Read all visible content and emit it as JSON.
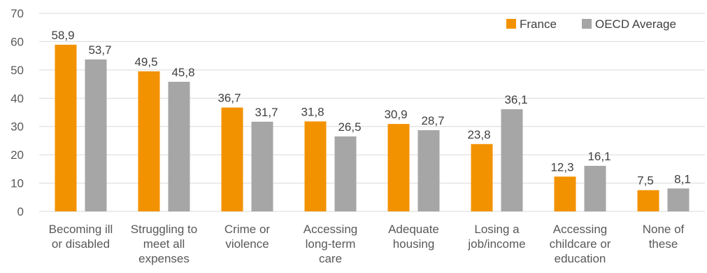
{
  "chart_data": {
    "type": "bar",
    "title": "",
    "xlabel": "",
    "ylabel": "",
    "ylim": [
      0,
      70
    ],
    "yticks": [
      0,
      10,
      20,
      30,
      40,
      50,
      60,
      70
    ],
    "grid": true,
    "legend_position": "top-right",
    "categories": [
      [
        "Becoming ill",
        "or disabled"
      ],
      [
        "Struggling to",
        "meet all",
        "expenses"
      ],
      [
        "Crime or",
        "violence"
      ],
      [
        "Accessing",
        "long-term",
        "care"
      ],
      [
        "Adequate",
        "housing"
      ],
      [
        "Losing a",
        "job/income"
      ],
      [
        "Accessing",
        "childcare or",
        "education"
      ],
      [
        "None of",
        "these"
      ]
    ],
    "series": [
      {
        "name": "France",
        "color": "#f39200",
        "values": [
          58.9,
          49.5,
          36.7,
          31.8,
          30.9,
          23.8,
          12.3,
          7.5
        ],
        "labels": [
          "58,9",
          "49,5",
          "36,7",
          "31,8",
          "30,9",
          "23,8",
          "12,3",
          "7,5"
        ]
      },
      {
        "name": "OECD Average",
        "color": "#a6a6a6",
        "values": [
          53.7,
          45.8,
          31.7,
          26.5,
          28.7,
          36.1,
          16.1,
          8.1
        ],
        "labels": [
          "53,7",
          "45,8",
          "31,7",
          "26,5",
          "28,7",
          "36,1",
          "16,1",
          "8,1"
        ]
      }
    ],
    "colors": {
      "gridline": "#d9d9d9",
      "axis_text": "#595959",
      "label_text": "#404040",
      "legend_text": "#404040"
    }
  }
}
